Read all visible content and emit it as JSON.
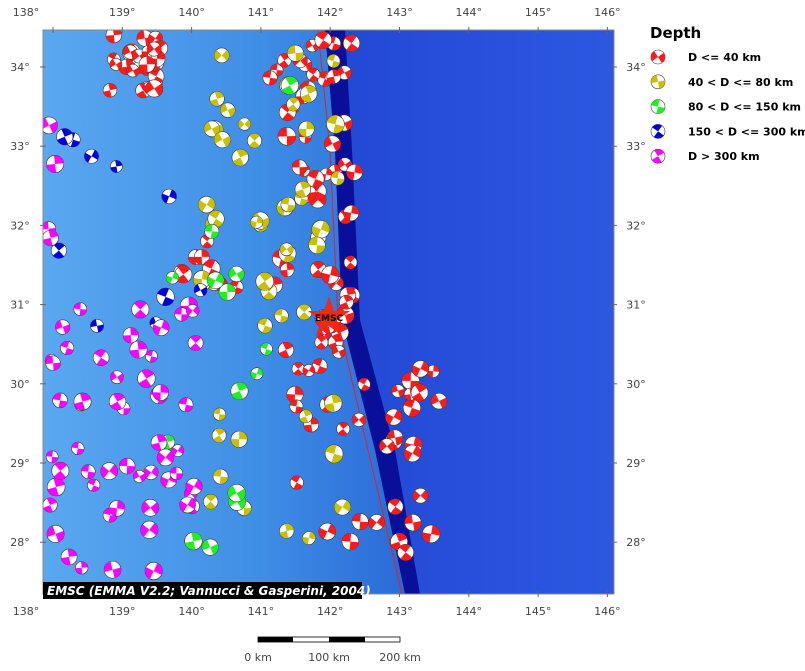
{
  "map": {
    "lon_ticks": [
      "138°",
      "139°",
      "140°",
      "141°",
      "142°",
      "143°",
      "144°",
      "145°",
      "146°"
    ],
    "lat_ticks": [
      "34°",
      "33°",
      "32°",
      "31°",
      "30°",
      "29°",
      "28°"
    ],
    "legend": {
      "title": "Depth",
      "entries": [
        {
          "label": "D <= 40 km",
          "color": "#ff1a1a"
        },
        {
          "label": "40 < D <= 80 km",
          "color": "#c8c000"
        },
        {
          "label": "80 < D <= 150 km",
          "color": "#22ee22"
        },
        {
          "label": "150 < D <= 300 km",
          "color": "#0000dd"
        },
        {
          "label": "D > 300 km",
          "color": "#ff00ff"
        }
      ]
    },
    "marker_label": "EMSC",
    "credit": "EMSC (EMMA V2.2; Vannucci & Gasperini, 2004)",
    "scale_labels": [
      "0 km",
      "100 km",
      "200 km"
    ]
  }
}
